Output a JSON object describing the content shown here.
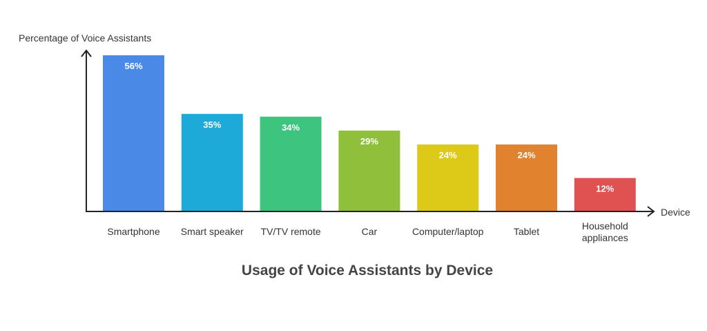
{
  "chart_data": {
    "type": "bar",
    "title": "Usage of Voice Assistants by Device",
    "ylabel": "Percentage of Voice Assistants",
    "xlabel": "Device",
    "categories": [
      "Smartphone",
      "Smart speaker",
      "TV/TV remote",
      "Car",
      "Computer/laptop",
      "Tablet",
      "Household appliances"
    ],
    "values": [
      56,
      35,
      34,
      29,
      24,
      24,
      12
    ],
    "data_labels": [
      "56%",
      "35%",
      "34%",
      "29%",
      "24%",
      "24%",
      "12%"
    ],
    "colors": [
      "#4a89e6",
      "#1eaad9",
      "#3dc47f",
      "#90bf3b",
      "#ddc918",
      "#e0822e",
      "#e05252"
    ],
    "ylim": [
      0,
      56
    ],
    "grid": false,
    "legend": "none"
  }
}
